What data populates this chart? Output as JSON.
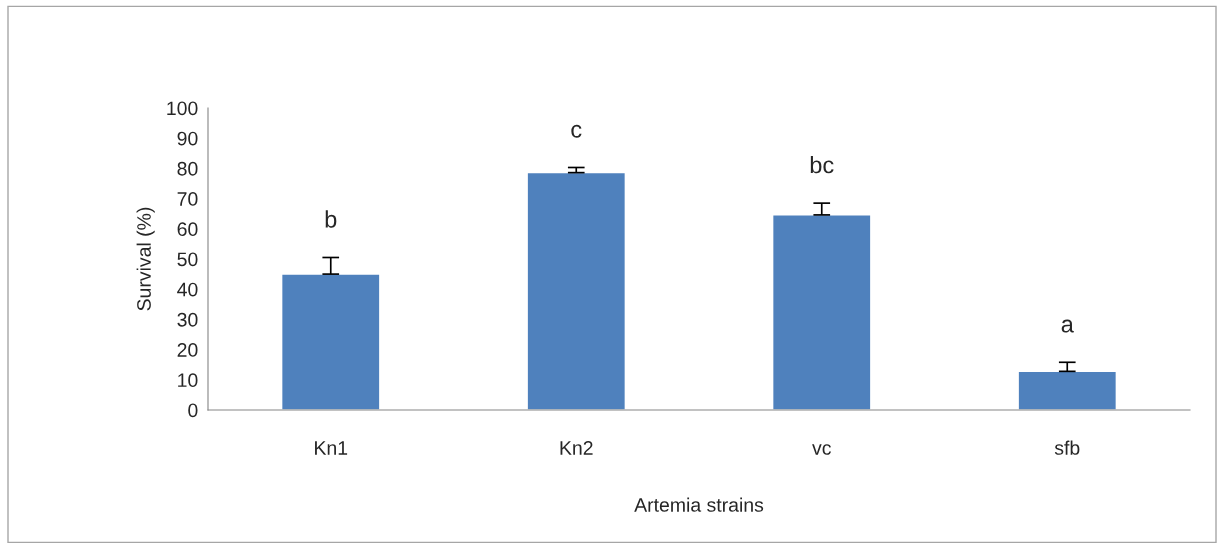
{
  "chart_data": {
    "type": "bar",
    "xlabel": "Artemia strains",
    "ylabel": "Survival (%)",
    "categories": [
      "Kn1",
      "Kn2",
      "vc",
      "sfb"
    ],
    "values": [
      45,
      78.6,
      64.6,
      12.8
    ],
    "errors": [
      [
        45,
        50.5
      ],
      [
        78.6,
        80.3
      ],
      [
        64.6,
        68.5
      ],
      [
        12.8,
        15.8
      ]
    ],
    "color": "#4f81bd",
    "ylim": [
      0,
      100
    ],
    "yticks": [
      0,
      10,
      20,
      30,
      40,
      50,
      60,
      70,
      80,
      90,
      100
    ],
    "grid": false,
    "legend": false,
    "annotations": [
      "b",
      "c",
      "bc",
      "a"
    ]
  }
}
